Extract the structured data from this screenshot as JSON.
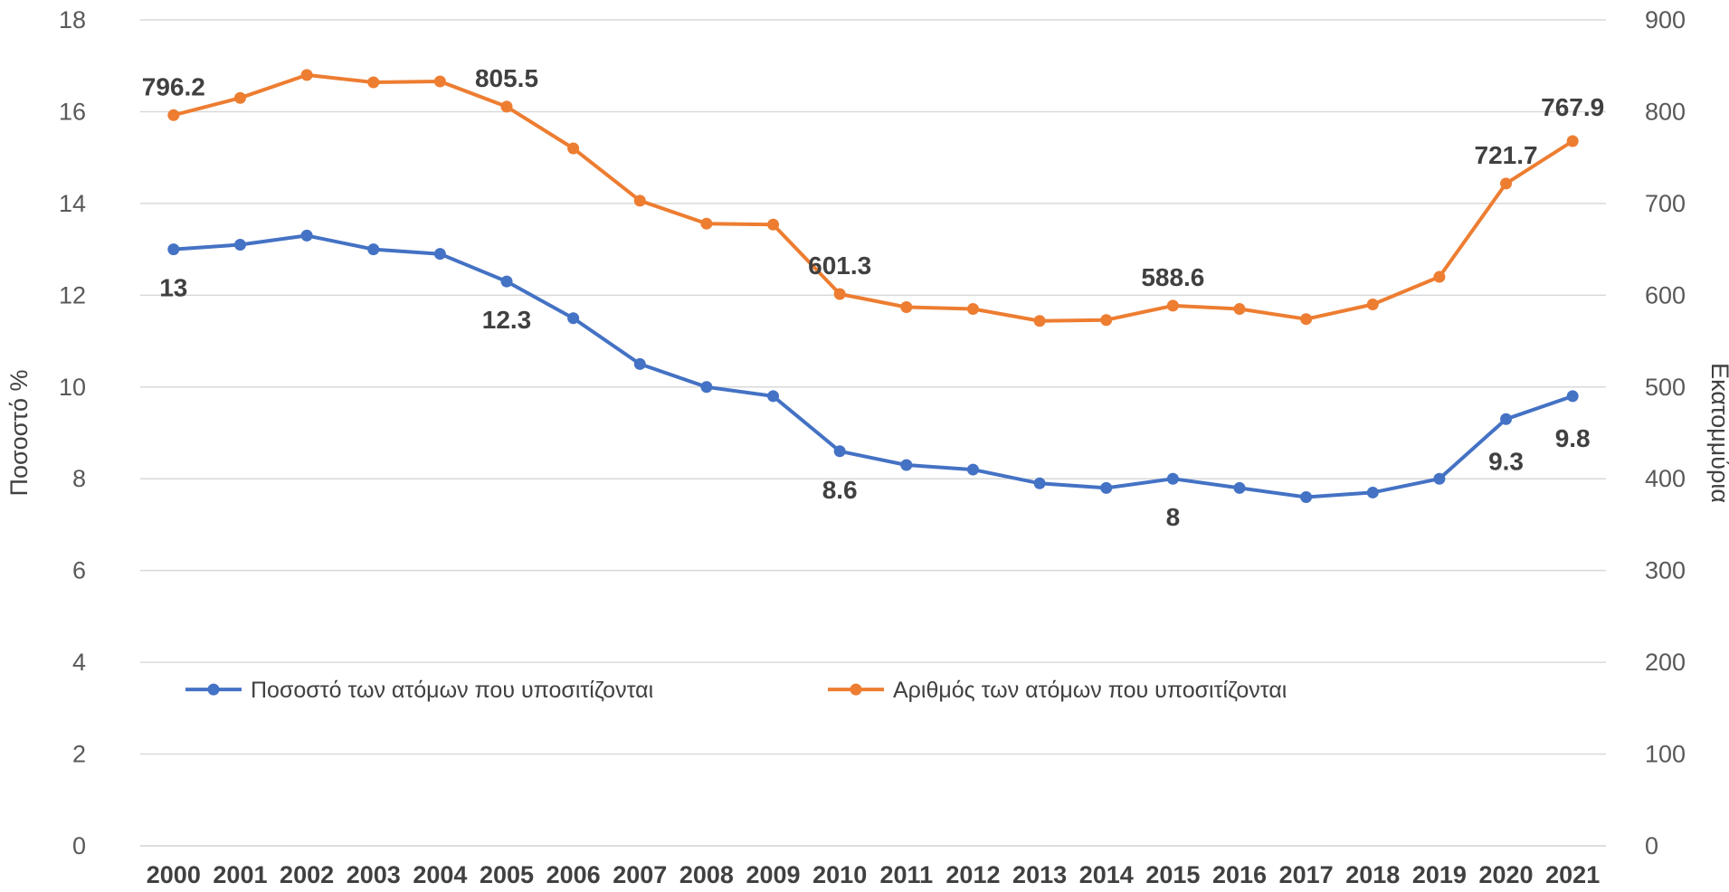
{
  "chart_data": {
    "type": "line",
    "categories": [
      "2000",
      "2001",
      "2002",
      "2003",
      "2004",
      "2005",
      "2006",
      "2007",
      "2008",
      "2009",
      "2010",
      "2011",
      "2012",
      "2013",
      "2014",
      "2015",
      "2016",
      "2017",
      "2018",
      "2019",
      "2020",
      "2021"
    ],
    "series": [
      {
        "name": "Ποσοστό των ατόμων που υποσιτίζονται",
        "axis": "left",
        "color": "#4472C4",
        "values": [
          13.0,
          13.1,
          13.3,
          13.0,
          12.9,
          12.3,
          11.5,
          10.5,
          10.0,
          9.8,
          8.6,
          8.3,
          8.2,
          7.9,
          7.8,
          8.0,
          7.8,
          7.6,
          7.7,
          8.0,
          9.3,
          9.8
        ],
        "labels": [
          {
            "index": 0,
            "text": "13",
            "pos": "below"
          },
          {
            "index": 5,
            "text": "12.3",
            "pos": "below"
          },
          {
            "index": 10,
            "text": "8.6",
            "pos": "below"
          },
          {
            "index": 15,
            "text": "8",
            "pos": "below"
          },
          {
            "index": 20,
            "text": "9.3",
            "pos": "below"
          },
          {
            "index": 21,
            "text": "9.8",
            "pos": "below"
          }
        ]
      },
      {
        "name": "Αριθμός των ατόμων που υποσιτίζονται",
        "axis": "right",
        "color": "#ED7D31",
        "values": [
          796.2,
          815,
          840,
          832,
          833,
          805.5,
          760,
          703,
          678,
          677,
          601.3,
          587,
          585,
          572,
          573,
          588.6,
          585,
          574,
          590,
          620,
          721.7,
          767.9
        ],
        "labels": [
          {
            "index": 0,
            "text": "796.2",
            "pos": "above"
          },
          {
            "index": 5,
            "text": "805.5",
            "pos": "above"
          },
          {
            "index": 10,
            "text": "601.3",
            "pos": "above"
          },
          {
            "index": 15,
            "text": "588.6",
            "pos": "above"
          },
          {
            "index": 20,
            "text": "721.7",
            "pos": "above"
          },
          {
            "index": 21,
            "text": "767.9",
            "pos": "above"
          }
        ]
      }
    ],
    "y_left": {
      "label": "Ποσοστό %",
      "min": 0,
      "max": 18,
      "ticks": [
        "0",
        "2",
        "4",
        "6",
        "8",
        "10",
        "12",
        "14",
        "16",
        "18"
      ]
    },
    "y_right": {
      "label": "Εκατομμύρια",
      "min": 0,
      "max": 900,
      "ticks": [
        "0",
        "100",
        "200",
        "300",
        "400",
        "500",
        "600",
        "700",
        "800",
        "900"
      ]
    },
    "grid": true,
    "legend": "inside-lower"
  }
}
